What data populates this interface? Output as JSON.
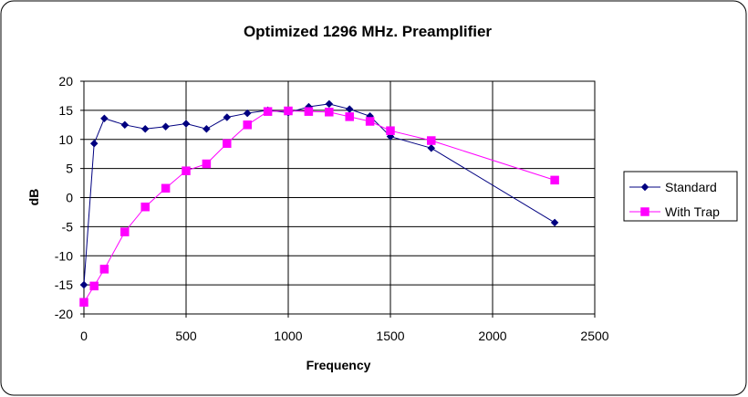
{
  "chart_data": {
    "type": "line",
    "title": "Optimized 1296 MHz. Preamplifier",
    "xlabel": "Frequency",
    "ylabel": "dB",
    "xlim": [
      0,
      2500
    ],
    "ylim": [
      -20,
      20
    ],
    "x_ticks": [
      0,
      500,
      1000,
      1500,
      2000,
      2500
    ],
    "y_ticks": [
      20,
      15,
      10,
      5,
      0,
      -5,
      -10,
      -15,
      -20
    ],
    "grid": true,
    "legend_position": "right",
    "series": [
      {
        "name": "Standard",
        "color": "#000080",
        "marker": "diamond",
        "x": [
          0,
          50,
          100,
          200,
          300,
          400,
          500,
          600,
          700,
          800,
          900,
          1000,
          1100,
          1200,
          1300,
          1400,
          1500,
          1700,
          2304
        ],
        "values": [
          -15,
          9.3,
          13.6,
          12.5,
          11.8,
          12.2,
          12.7,
          11.8,
          13.8,
          14.5,
          15.0,
          14.6,
          15.6,
          16.1,
          15.2,
          14.0,
          10.5,
          8.5,
          -4.3
        ]
      },
      {
        "name": "With Trap",
        "color": "#ff00ff",
        "marker": "square",
        "x": [
          0,
          50,
          100,
          200,
          300,
          400,
          500,
          600,
          700,
          800,
          900,
          1000,
          1100,
          1200,
          1300,
          1400,
          1500,
          1700,
          2304
        ],
        "values": [
          -18,
          -15.2,
          -12.3,
          -5.9,
          -1.6,
          1.6,
          4.6,
          5.8,
          9.3,
          12.5,
          14.8,
          14.9,
          14.8,
          14.7,
          13.9,
          13.1,
          11.5,
          9.8,
          3.0
        ]
      }
    ]
  }
}
